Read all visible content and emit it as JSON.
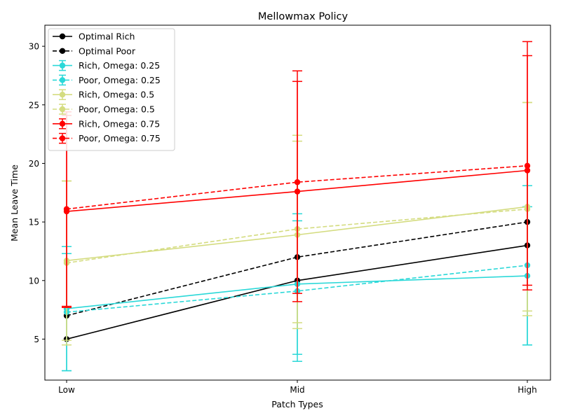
{
  "chart_data": {
    "type": "line",
    "title": "Mellowmax Policy",
    "xlabel": "Patch Types",
    "ylabel": "Mean Leave Time",
    "categories": [
      "Low",
      "Mid",
      "High"
    ],
    "ylim": [
      1.5,
      31.8
    ],
    "yticks": [
      5,
      10,
      15,
      20,
      25,
      30
    ],
    "grid": false,
    "legend_position": "upper left",
    "series": [
      {
        "name": "Optimal Rich",
        "color": "#000000",
        "dashed": false,
        "values": [
          5,
          10,
          13
        ],
        "errors": null
      },
      {
        "name": "Optimal Poor",
        "color": "#000000",
        "dashed": true,
        "values": [
          7,
          12,
          15
        ],
        "errors": null
      },
      {
        "name": "Rich, Omega: 0.25",
        "color": "#2ad8d8",
        "dashed": false,
        "values": [
          7.6,
          9.7,
          10.4
        ],
        "errors": [
          5.3,
          6.0,
          5.9
        ]
      },
      {
        "name": "Poor, Omega: 0.25",
        "color": "#2ad8d8",
        "dashed": true,
        "values": [
          7.3,
          9.1,
          11.3
        ],
        "errors": [
          5.0,
          6.0,
          6.8
        ]
      },
      {
        "name": "Rich, Omega: 0.5",
        "color": "#d4dc80",
        "dashed": false,
        "values": [
          11.7,
          13.9,
          16.3
        ],
        "errors": [
          6.8,
          8.0,
          8.9
        ]
      },
      {
        "name": "Poor, Omega: 0.5",
        "color": "#d4dc80",
        "dashed": true,
        "values": [
          11.5,
          14.4,
          16.1
        ],
        "errors": [
          7.0,
          8.0,
          9.1
        ]
      },
      {
        "name": "Rich, Omega: 0.75",
        "color": "#ff0000",
        "dashed": false,
        "values": [
          15.9,
          17.6,
          19.4
        ],
        "errors": [
          8.2,
          9.4,
          9.8
        ]
      },
      {
        "name": "Poor, Omega: 0.75",
        "color": "#ff0000",
        "dashed": true,
        "values": [
          16.1,
          18.4,
          19.8
        ],
        "errors": [
          8.3,
          9.5,
          10.6
        ]
      }
    ]
  }
}
